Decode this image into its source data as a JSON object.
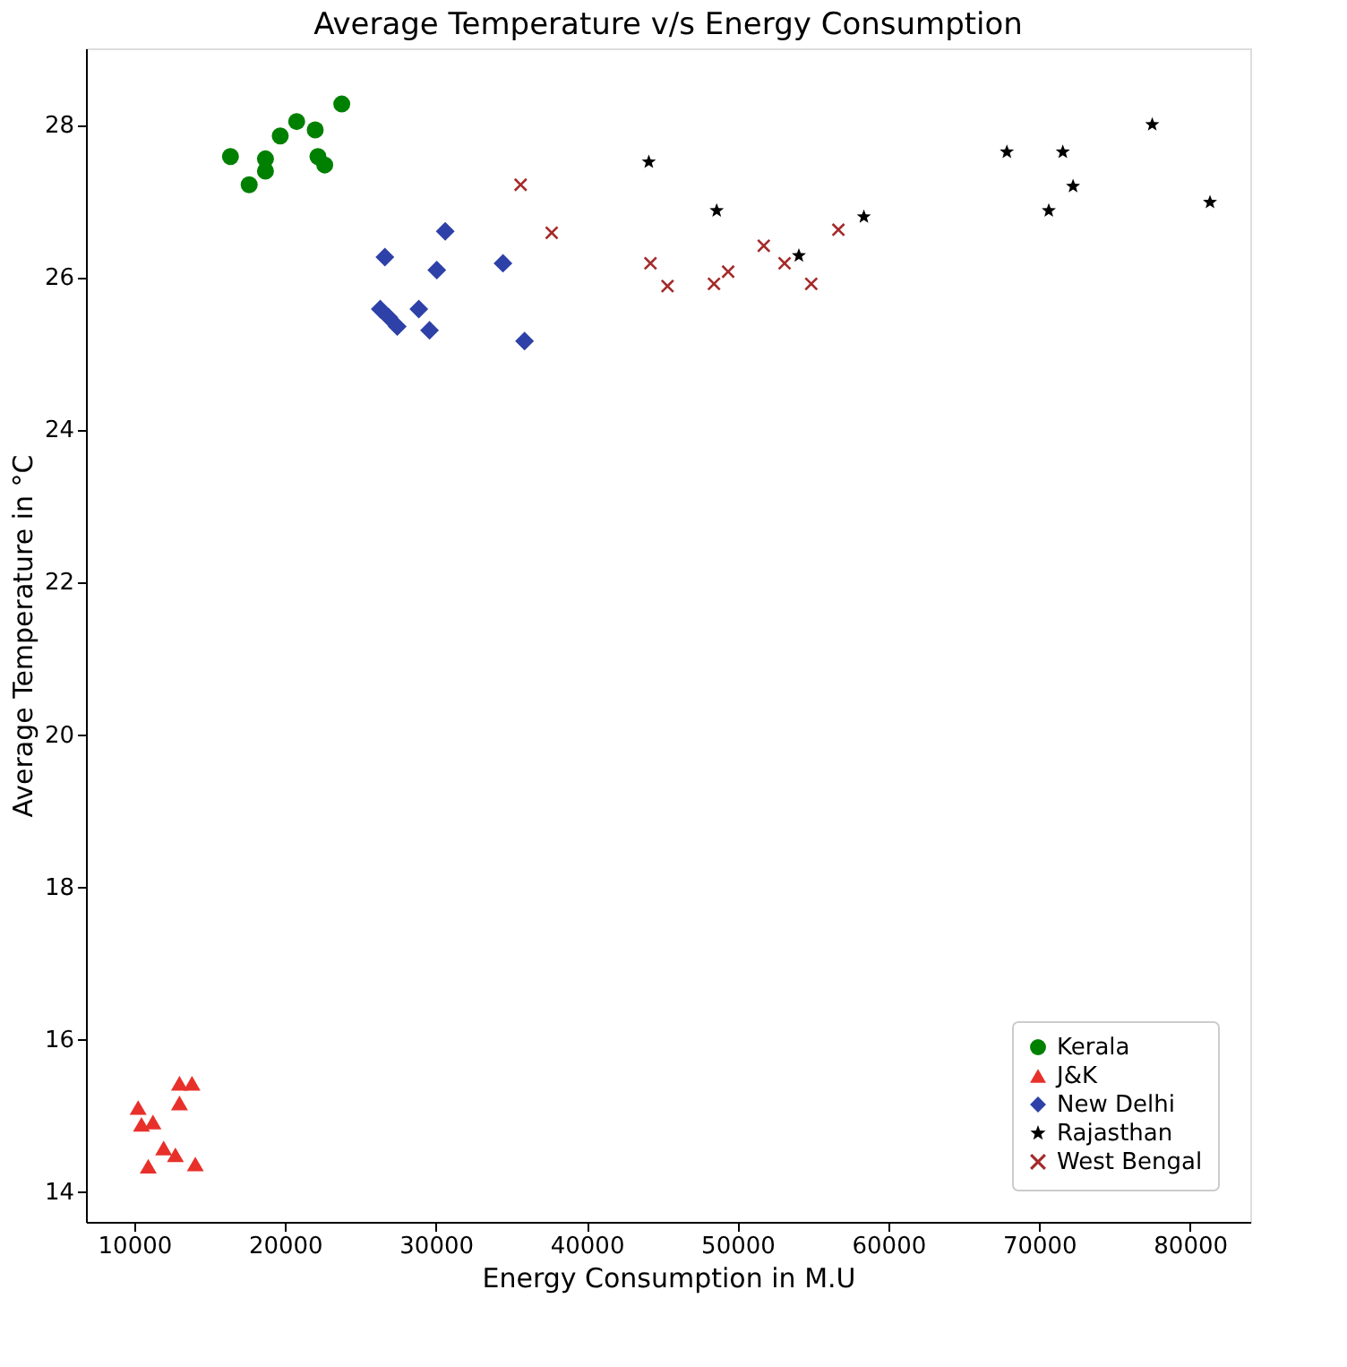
{
  "chart_data": {
    "type": "scatter",
    "title": "Average Temperature v/s Energy Consumption",
    "xlabel": "Energy Consumption in  M.U",
    "ylabel": "Average Temperature in °C",
    "xlim": [
      6800,
      84000
    ],
    "ylim": [
      13.6,
      29.0
    ],
    "xticks": [
      10000,
      20000,
      30000,
      40000,
      50000,
      60000,
      70000,
      80000
    ],
    "yticks": [
      14,
      16,
      18,
      20,
      22,
      24,
      26,
      28
    ],
    "grid": false,
    "legend": "bottom right",
    "series": [
      {
        "name": "Kerala",
        "color": "#008000",
        "marker": "circle",
        "x": [
          16380,
          17620,
          18700,
          18700,
          19680,
          20770,
          22000,
          22180,
          22630,
          23760
        ],
        "values": [
          27.58,
          27.21,
          27.55,
          27.39,
          27.85,
          28.04,
          27.93,
          27.58,
          27.47,
          28.27
        ]
      },
      {
        "name": "J&K",
        "color": "#e8302a",
        "marker": "triangle",
        "x": [
          10260,
          10480,
          11240,
          13000,
          13830,
          13000,
          11950,
          12730,
          10930,
          14050
        ],
        "values": [
          15.1,
          14.88,
          14.91,
          15.42,
          15.42,
          15.16,
          14.57,
          14.48,
          14.33,
          14.36
        ]
      },
      {
        "name": "New Delhi",
        "color": "#2e41a8",
        "marker": "diamond",
        "x": [
          30620,
          26620,
          30060,
          34450,
          26310,
          26880,
          27440,
          28870,
          29580,
          35880
        ],
        "values": [
          26.6,
          26.26,
          26.09,
          26.18,
          25.58,
          25.47,
          25.35,
          25.58,
          25.3,
          25.16
        ]
      },
      {
        "name": "Rajasthan",
        "color": "#000000",
        "marker": "star",
        "x": [
          44120,
          48620,
          54070,
          58380,
          67860,
          71570,
          72250,
          70640,
          77500,
          81330
        ],
        "values": [
          27.51,
          26.87,
          26.28,
          26.79,
          27.64,
          27.64,
          27.19,
          26.87,
          28.0,
          26.98
        ]
      },
      {
        "name": "West Bengal",
        "color": "#a52a2a",
        "marker": "cross",
        "x": [
          35620,
          37680,
          44230,
          45360,
          48440,
          49380,
          51740,
          53120,
          54890,
          56690
        ],
        "values": [
          27.21,
          26.58,
          26.18,
          25.88,
          25.91,
          26.07,
          26.41,
          26.18,
          25.91,
          26.62
        ]
      }
    ]
  }
}
